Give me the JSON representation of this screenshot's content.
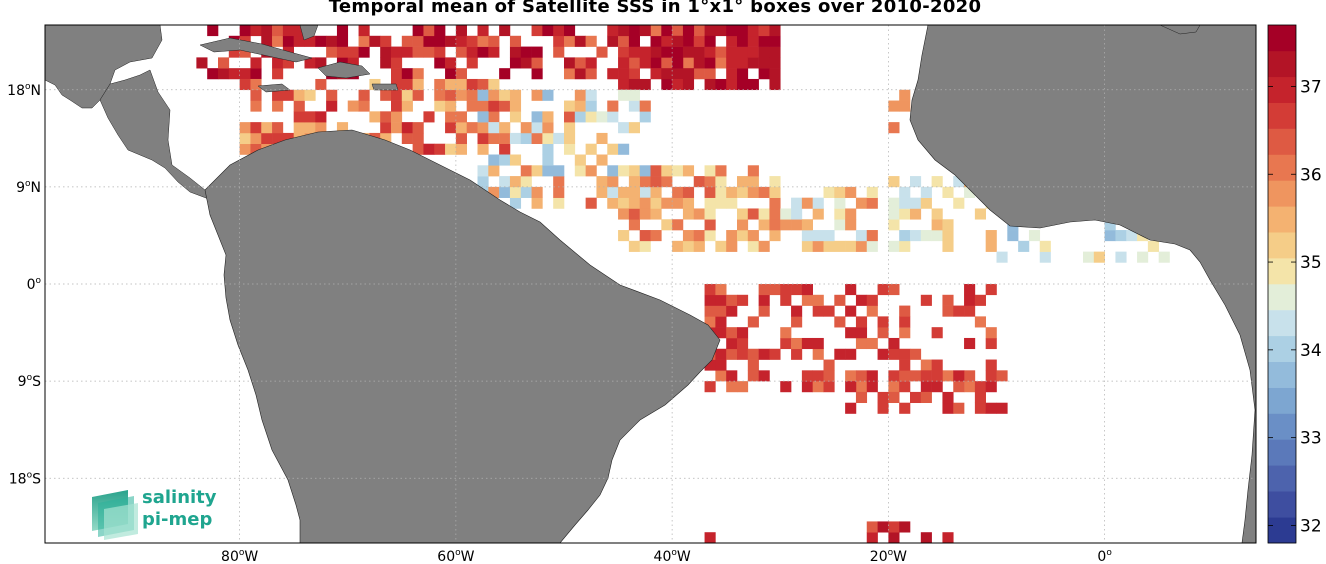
{
  "title": "Temporal mean of Satellite SSS in 1°x1° boxes over 2010-2020",
  "map": {
    "lon_range": [
      -98,
      14
    ],
    "lat_range": [
      -24,
      24
    ],
    "lon_ticks": [
      {
        "value": -80,
        "label": "80",
        "hemi": "W"
      },
      {
        "value": -60,
        "label": "60",
        "hemi": "W"
      },
      {
        "value": -40,
        "label": "40",
        "hemi": "W"
      },
      {
        "value": -20,
        "label": "20",
        "hemi": "W"
      },
      {
        "value": 0,
        "label": "0",
        "hemi": ""
      }
    ],
    "lat_ticks": [
      {
        "value": 18,
        "label": "18",
        "hemi": "N"
      },
      {
        "value": 9,
        "label": "9",
        "hemi": "N"
      },
      {
        "value": 0,
        "label": "0",
        "hemi": ""
      },
      {
        "value": -9,
        "label": "9",
        "hemi": "S"
      },
      {
        "value": -18,
        "label": "18",
        "hemi": "S"
      }
    ],
    "land_color": "#808080",
    "grid": true
  },
  "colorbar": {
    "min": 31.8,
    "max": 37.7,
    "ticks": [
      32,
      33,
      34,
      35,
      36,
      37
    ],
    "colors": [
      "#2c3b92",
      "#3e4ea0",
      "#4d63ad",
      "#5b79ba",
      "#6a8fc6",
      "#7da6d1",
      "#93bbdb",
      "#acd0e4",
      "#c8e1eb",
      "#e3eed9",
      "#f4e4a9",
      "#f5cd88",
      "#f4b271",
      "#ef955f",
      "#e87750",
      "#de5a43",
      "#d33c36",
      "#c5232c",
      "#b31426",
      "#a50026"
    ]
  },
  "logo": {
    "line1": "salinity",
    "line2": "pi-mep",
    "color": "#1fa58f"
  }
}
